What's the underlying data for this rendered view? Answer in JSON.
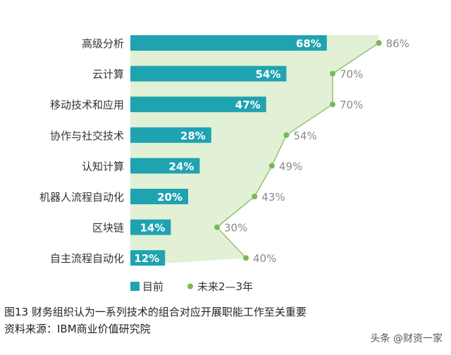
{
  "chart_data": {
    "type": "bar",
    "orientation": "horizontal",
    "categories": [
      "高级分析",
      "云计算",
      "移动技术和应用",
      "协作与社交技术",
      "认知计算",
      "机器人流程自动化",
      "区块链",
      "自主流程自动化"
    ],
    "series": [
      {
        "name": "目前",
        "type": "bar",
        "values": [
          68,
          54,
          47,
          28,
          24,
          20,
          14,
          12
        ],
        "color": "#1fa3b1"
      },
      {
        "name": "未来2—3年",
        "type": "area-line",
        "values": [
          86,
          70,
          70,
          54,
          49,
          43,
          30,
          40
        ],
        "color": "#7bb853",
        "fill": "#e2f0d6"
      }
    ],
    "value_suffix": "%",
    "xlim": [
      0,
      100
    ],
    "grid": false,
    "legend": "bottom-left"
  },
  "caption": {
    "title": "图13  财务组织认为一系列技术的组合对应开展职能工作至关重要",
    "source": "资料来源：IBM商业价值研究院"
  },
  "watermark": "头条 @财资一家"
}
